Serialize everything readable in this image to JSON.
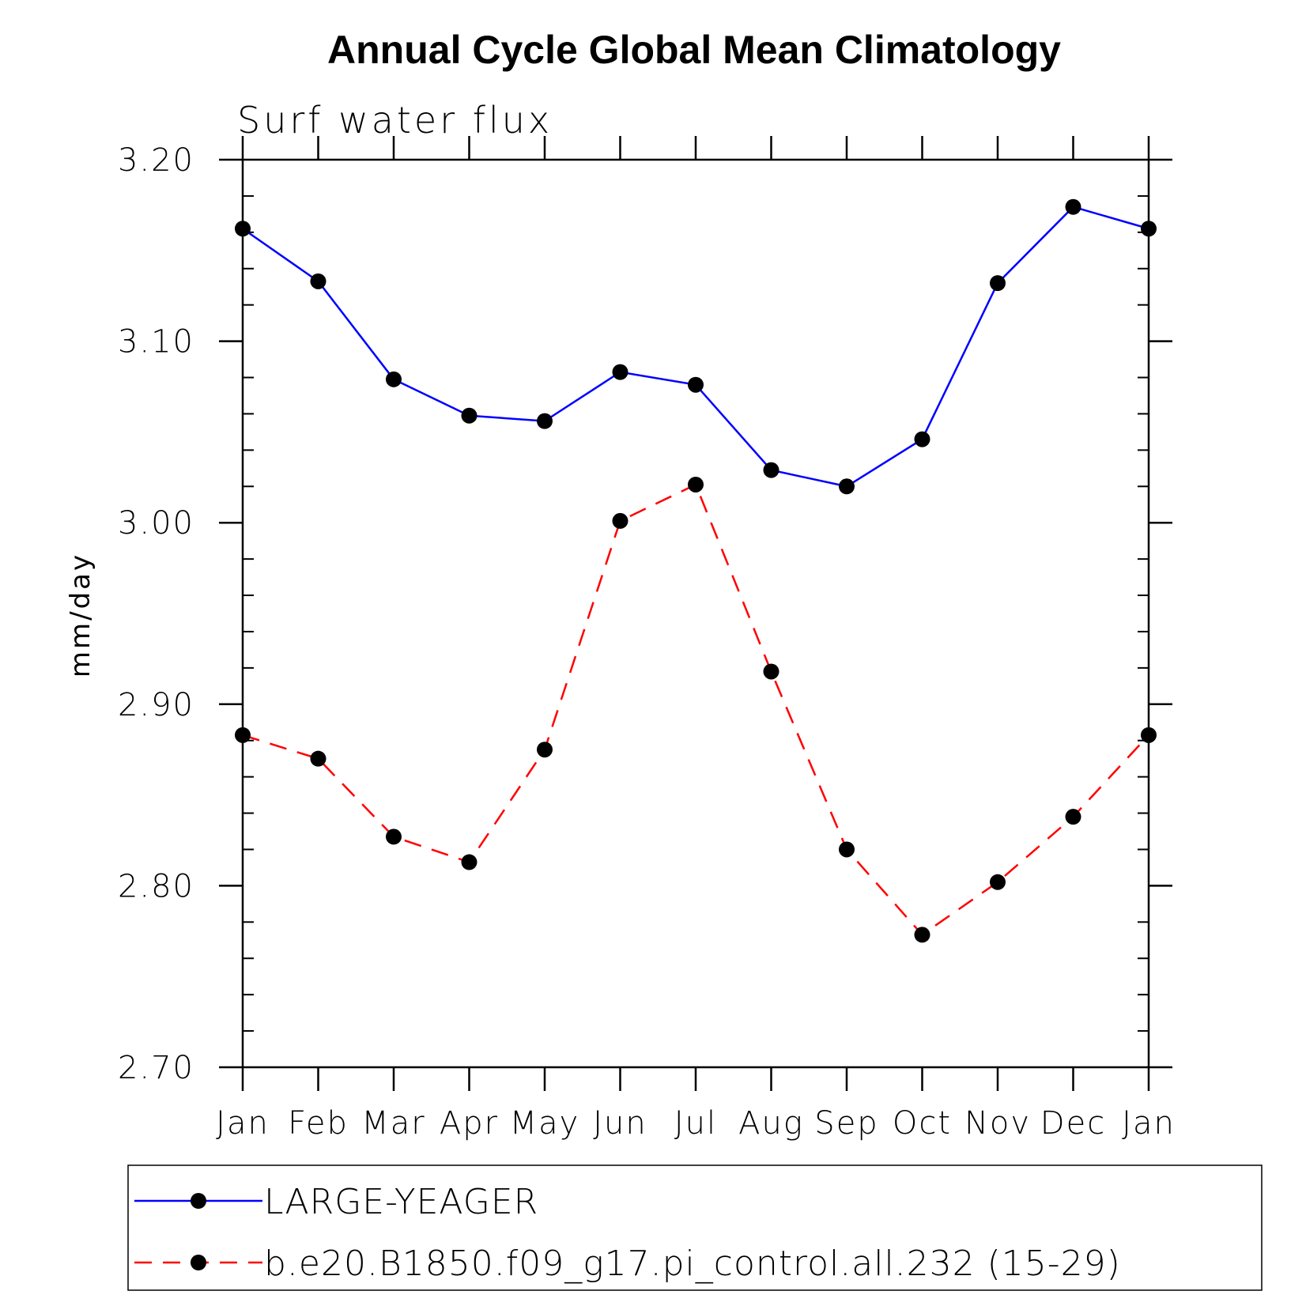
{
  "chart_data": {
    "type": "line",
    "title": "Annual Cycle Global Mean Climatology",
    "subtitle": "Surf water flux",
    "xlabel": "",
    "ylabel": "mm/day",
    "ylim": [
      2.7,
      3.2
    ],
    "yticks": [
      "2.70",
      "2.80",
      "2.90",
      "3.00",
      "3.10",
      "3.20"
    ],
    "categories": [
      "Jan",
      "Feb",
      "Mar",
      "Apr",
      "May",
      "Jun",
      "Jul",
      "Aug",
      "Sep",
      "Oct",
      "Nov",
      "Dec",
      "Jan"
    ],
    "series": [
      {
        "name": "LARGE-YEAGER",
        "color": "#0000ff",
        "style": "solid",
        "values": [
          3.162,
          3.133,
          3.079,
          3.059,
          3.056,
          3.083,
          3.076,
          3.029,
          3.02,
          3.046,
          3.132,
          3.174,
          3.162
        ]
      },
      {
        "name": "b.e20.B1850.f09_g17.pi_control.all.232 (15-29)",
        "color": "#ff0000",
        "style": "dashed",
        "values": [
          2.883,
          2.87,
          2.827,
          2.813,
          2.875,
          3.001,
          3.021,
          2.918,
          2.82,
          2.773,
          2.802,
          2.838,
          2.883
        ]
      }
    ],
    "marker_color": "#000000",
    "legend_position": "bottom"
  }
}
